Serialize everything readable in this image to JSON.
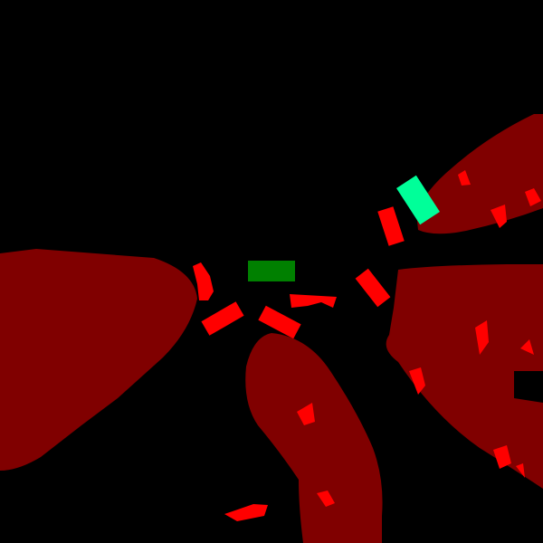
{
  "palette": {
    "background": "#000000",
    "large_region": "#800000",
    "small_part": "#ff0000",
    "green_tag": "#008000",
    "cyan_tag": "#00ff99"
  },
  "regions": [
    {
      "name": "left-region",
      "class": "large_region"
    },
    {
      "name": "bottom-center-region",
      "class": "large_region"
    },
    {
      "name": "right-region",
      "class": "large_region"
    },
    {
      "name": "upper-right-region",
      "class": "large_region"
    }
  ],
  "parts": [
    {
      "name": "green-tag",
      "class": "green_tag"
    },
    {
      "name": "cyan-tag",
      "class": "cyan_tag"
    }
  ]
}
